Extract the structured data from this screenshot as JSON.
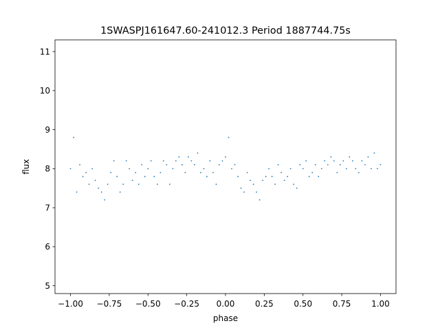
{
  "chart_data": {
    "type": "scatter",
    "title": "1SWASPJ161647.60-241012.3 Period 1887744.75s",
    "xlabel": "phase",
    "ylabel": "flux",
    "xlim": [
      -1.1,
      1.1
    ],
    "ylim": [
      4.8,
      11.3
    ],
    "xticks": [
      -1.0,
      -0.75,
      -0.5,
      -0.25,
      0.0,
      0.25,
      0.5,
      0.75,
      1.0
    ],
    "xtick_labels": [
      "−1.00",
      "−0.75",
      "−0.50",
      "−0.25",
      "0.00",
      "0.25",
      "0.50",
      "0.75",
      "1.00"
    ],
    "yticks": [
      5,
      6,
      7,
      8,
      9,
      10,
      11
    ],
    "ytick_labels": [
      "5",
      "6",
      "7",
      "8",
      "9",
      "10",
      "11"
    ],
    "grid": false,
    "legend": "none",
    "marker_color": "#1f77b4",
    "series": [
      {
        "x": [
          -1.0,
          -0.98,
          -0.96,
          -0.94,
          -0.92,
          -0.9,
          -0.88,
          -0.86,
          -0.84,
          -0.82,
          -0.8,
          -0.78,
          -0.76,
          -0.74,
          -0.72,
          -0.7,
          -0.68,
          -0.66,
          -0.64,
          -0.62,
          -0.6,
          -0.58,
          -0.56,
          -0.54,
          -0.52,
          -0.5,
          -0.48,
          -0.46,
          -0.44,
          -0.42,
          -0.4,
          -0.38,
          -0.36,
          -0.34,
          -0.32,
          -0.3,
          -0.28,
          -0.26,
          -0.24,
          -0.22,
          -0.2,
          -0.18,
          -0.16,
          -0.14,
          -0.12,
          -0.1,
          -0.08,
          -0.06,
          -0.04,
          -0.02,
          0.0,
          0.02,
          0.04,
          0.06,
          0.08,
          0.1,
          0.12,
          0.14,
          0.16,
          0.18,
          0.2,
          0.22,
          0.24,
          0.26,
          0.28,
          0.3,
          0.32,
          0.34,
          0.36,
          0.38,
          0.4,
          0.42,
          0.44,
          0.46,
          0.48,
          0.5,
          0.52,
          0.54,
          0.56,
          0.58,
          0.6,
          0.62,
          0.64,
          0.66,
          0.68,
          0.7,
          0.72,
          0.74,
          0.76,
          0.78,
          0.8,
          0.82,
          0.84,
          0.86,
          0.88,
          0.9,
          0.92,
          0.94,
          0.96,
          0.98,
          1.0
        ],
        "y": [
          8.0,
          8.8,
          7.4,
          8.1,
          7.8,
          7.9,
          7.6,
          8.0,
          7.7,
          7.5,
          7.4,
          7.2,
          7.6,
          7.9,
          8.2,
          7.8,
          7.4,
          7.6,
          8.2,
          8.0,
          7.7,
          7.9,
          7.6,
          8.1,
          7.8,
          8.0,
          8.2,
          7.8,
          7.6,
          7.9,
          8.2,
          8.1,
          7.6,
          8.0,
          8.2,
          8.3,
          8.1,
          7.9,
          8.3,
          8.2,
          8.1,
          8.4,
          7.9,
          8.0,
          7.8,
          8.2,
          7.9,
          7.6,
          8.1,
          8.2,
          8.3,
          8.8,
          8.0,
          8.1,
          7.8,
          7.5,
          7.4,
          7.9,
          7.7,
          7.6,
          7.4,
          7.2,
          7.7,
          7.8,
          8.0,
          7.8,
          7.6,
          8.1,
          7.9,
          7.7,
          7.8,
          8.0,
          7.6,
          7.5,
          8.1,
          8.0,
          8.2,
          7.8,
          7.9,
          8.1,
          7.8,
          8.0,
          8.2,
          8.1,
          8.3,
          8.2,
          7.9,
          8.1,
          8.2,
          8.0,
          8.3,
          8.2,
          8.0,
          7.9,
          8.2,
          8.1,
          8.3,
          8.0,
          8.4,
          8.0,
          8.1
        ]
      }
    ]
  }
}
